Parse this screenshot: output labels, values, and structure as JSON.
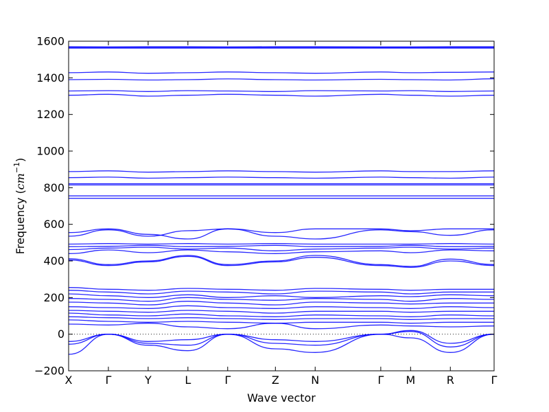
{
  "chart_data": {
    "type": "line",
    "title": "",
    "xlabel": "Wave vector",
    "ylabel": "Frequency ($cm^{-1}$)",
    "ylabel_parts": {
      "text": "Frequency (",
      "unit": "cm",
      "exp": "−1",
      "close": ")"
    },
    "ylim": [
      -200,
      1600
    ],
    "yticks": [
      -200,
      0,
      200,
      400,
      600,
      800,
      1000,
      1200,
      1400,
      1600
    ],
    "xticks": [
      {
        "label": "X",
        "x": 0.0
      },
      {
        "label": "Γ",
        "x": 1.0
      },
      {
        "label": "Y",
        "x": 2.0
      },
      {
        "label": "L",
        "x": 3.0
      },
      {
        "label": "Γ",
        "x": 4.0
      },
      {
        "label": "Z",
        "x": 5.2
      },
      {
        "label": "N",
        "x": 6.2
      },
      {
        "label": "Γ",
        "x": 7.85
      },
      {
        "label": "M",
        "x": 8.6
      },
      {
        "label": "R",
        "x": 9.6
      },
      {
        "label": "Γ",
        "x": 10.7
      }
    ],
    "xlim": [
      0,
      10.7
    ],
    "zero_line": {
      "y": 0,
      "style": "dotted"
    },
    "line_color": "#0000ff",
    "grid": false,
    "series": [
      {
        "y": [
          1570,
          1569,
          1570,
          1570,
          1569,
          1570,
          1570,
          1569,
          1569,
          1570,
          1570
        ]
      },
      {
        "y": [
          1566,
          1566,
          1566,
          1566,
          1566,
          1566,
          1566,
          1565,
          1565,
          1566,
          1566
        ]
      },
      {
        "y": [
          1562,
          1562,
          1562,
          1562,
          1562,
          1562,
          1562,
          1562,
          1562,
          1562,
          1562
        ]
      },
      {
        "y": [
          1428,
          1432,
          1425,
          1428,
          1432,
          1428,
          1425,
          1432,
          1428,
          1430,
          1432
        ]
      },
      {
        "y": [
          1390,
          1392,
          1388,
          1390,
          1394,
          1390,
          1388,
          1392,
          1390,
          1388,
          1395
        ]
      },
      {
        "y": [
          1328,
          1330,
          1325,
          1330,
          1328,
          1325,
          1330,
          1328,
          1330,
          1325,
          1328
        ]
      },
      {
        "y": [
          1305,
          1310,
          1300,
          1305,
          1310,
          1305,
          1300,
          1310,
          1305,
          1300,
          1305
        ]
      },
      {
        "y": [
          888,
          892,
          885,
          888,
          892,
          888,
          885,
          892,
          888,
          888,
          892
        ]
      },
      {
        "y": [
          855,
          858,
          852,
          855,
          858,
          855,
          852,
          858,
          855,
          852,
          858
        ]
      },
      {
        "y": [
          822,
          822,
          822,
          822,
          822,
          822,
          822,
          822,
          822,
          822,
          822
        ]
      },
      {
        "y": [
          815,
          815,
          815,
          815,
          815,
          815,
          815,
          815,
          815,
          815,
          815
        ]
      },
      {
        "y": [
          755,
          755,
          755,
          755,
          755,
          755,
          755,
          755,
          755,
          755,
          755
        ]
      },
      {
        "y": [
          742,
          742,
          742,
          742,
          742,
          742,
          742,
          742,
          742,
          742,
          742
        ]
      },
      {
        "y": [
          555,
          575,
          545,
          520,
          575,
          555,
          575,
          575,
          565,
          575,
          575
        ]
      },
      {
        "y": [
          535,
          570,
          535,
          565,
          575,
          535,
          520,
          570,
          560,
          540,
          570
        ]
      },
      {
        "y": [
          492,
          495,
          492,
          495,
          492,
          495,
          492,
          492,
          492,
          495,
          492
        ]
      },
      {
        "y": [
          478,
          480,
          485,
          478,
          480,
          485,
          478,
          480,
          485,
          478,
          480
        ]
      },
      {
        "y": [
          462,
          470,
          475,
          465,
          470,
          455,
          465,
          470,
          475,
          465,
          470
        ]
      },
      {
        "y": [
          440,
          460,
          445,
          460,
          450,
          440,
          450,
          455,
          445,
          460,
          455
        ]
      },
      {
        "y": [
          412,
          380,
          400,
          430,
          380,
          400,
          430,
          380,
          370,
          410,
          380
        ]
      },
      {
        "y": [
          405,
          375,
          395,
          425,
          375,
          395,
          420,
          375,
          365,
          400,
          375
        ]
      },
      {
        "y": [
          255,
          245,
          240,
          250,
          245,
          240,
          250,
          245,
          240,
          245,
          245
        ]
      },
      {
        "y": [
          240,
          230,
          220,
          235,
          230,
          220,
          235,
          230,
          220,
          230,
          230
        ]
      },
      {
        "y": [
          220,
          210,
          200,
          215,
          200,
          210,
          200,
          210,
          205,
          215,
          210
        ]
      },
      {
        "y": [
          195,
          190,
          180,
          200,
          190,
          185,
          195,
          190,
          180,
          195,
          190
        ]
      },
      {
        "y": [
          175,
          170,
          160,
          180,
          170,
          160,
          175,
          170,
          165,
          170,
          170
        ]
      },
      {
        "y": [
          150,
          145,
          140,
          155,
          145,
          140,
          150,
          145,
          140,
          150,
          145
        ]
      },
      {
        "y": [
          130,
          125,
          120,
          130,
          125,
          115,
          125,
          125,
          120,
          125,
          125
        ]
      },
      {
        "y": [
          115,
          105,
          100,
          110,
          100,
          95,
          105,
          100,
          95,
          105,
          100
        ]
      },
      {
        "y": [
          95,
          90,
          85,
          90,
          85,
          80,
          85,
          85,
          80,
          85,
          85
        ]
      },
      {
        "y": [
          78,
          70,
          65,
          70,
          65,
          60,
          65,
          65,
          60,
          65,
          65
        ]
      },
      {
        "y": [
          55,
          50,
          60,
          40,
          30,
          60,
          30,
          50,
          45,
          40,
          45
        ]
      },
      {
        "y": [
          -40,
          0,
          -40,
          -30,
          0,
          -30,
          -40,
          0,
          20,
          -50,
          0
        ]
      },
      {
        "y": [
          -55,
          0,
          -50,
          -60,
          0,
          -50,
          -60,
          0,
          15,
          -70,
          0
        ]
      },
      {
        "y": [
          -110,
          0,
          -60,
          -90,
          0,
          -80,
          -100,
          0,
          -20,
          -100,
          0
        ]
      }
    ]
  }
}
